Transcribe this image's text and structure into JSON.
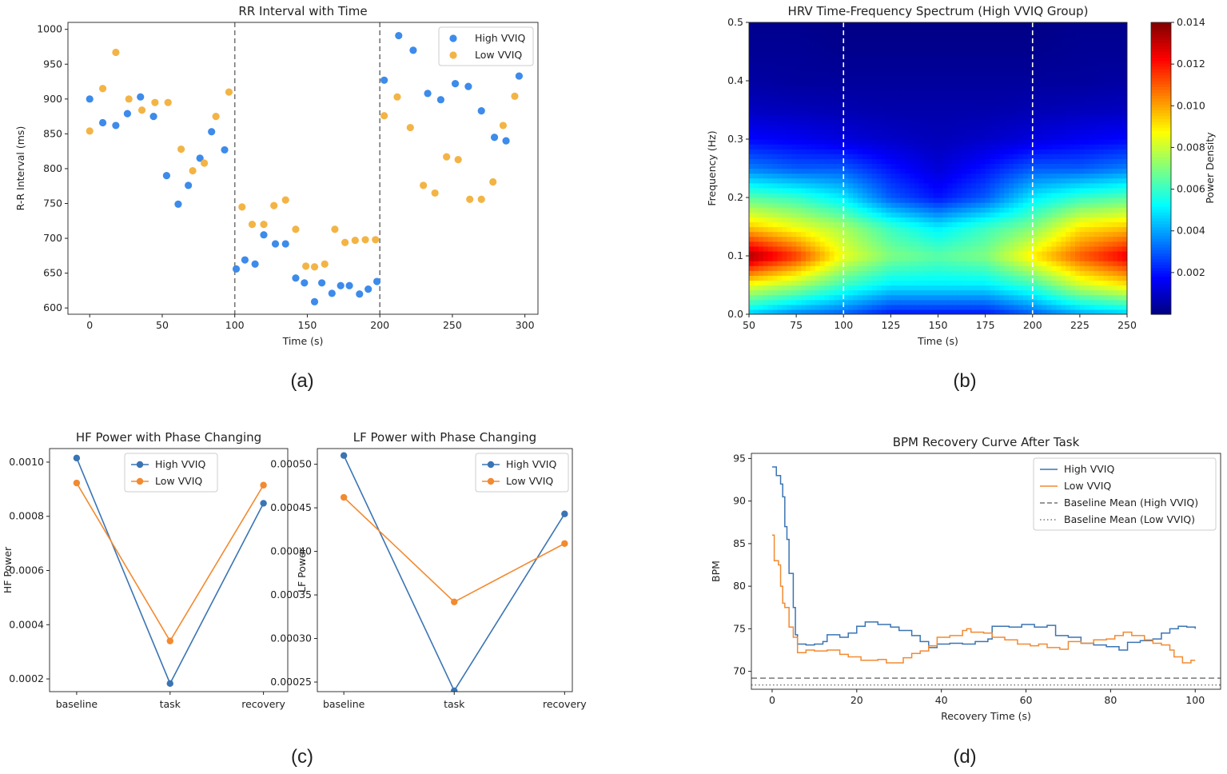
{
  "chart_data": [
    {
      "type": "scatter",
      "panel_label": "(a)",
      "title": "RR Interval with Time",
      "xlabel": "Time (s)",
      "ylabel": "R-R Interval (ms)",
      "xlim": [
        -15,
        309
      ],
      "ylim": [
        591,
        1010
      ],
      "xticks": [
        "0",
        "50",
        "100",
        "150",
        "200",
        "250",
        "300"
      ],
      "yticks": [
        "600",
        "650",
        "700",
        "750",
        "800",
        "850",
        "900",
        "950",
        "1000"
      ],
      "vlines": [
        100,
        200
      ],
      "legend": "top-right",
      "series": [
        {
          "name": "High VVIQ",
          "color": "#3d8bea",
          "points": [
            [
              0,
              900
            ],
            [
              9,
              866
            ],
            [
              18,
              862
            ],
            [
              26,
              879
            ],
            [
              35,
              903
            ],
            [
              44,
              875
            ],
            [
              53,
              790
            ],
            [
              61,
              749
            ],
            [
              68,
              776
            ],
            [
              76,
              815
            ],
            [
              84,
              853
            ],
            [
              93,
              827
            ],
            [
              101,
              656
            ],
            [
              107,
              669
            ],
            [
              114,
              663
            ],
            [
              120,
              705
            ],
            [
              128,
              692
            ],
            [
              135,
              692
            ],
            [
              142,
              643
            ],
            [
              148,
              636
            ],
            [
              155,
              609
            ],
            [
              160,
              636
            ],
            [
              167,
              621
            ],
            [
              173,
              632
            ],
            [
              179,
              632
            ],
            [
              186,
              620
            ],
            [
              192,
              627
            ],
            [
              198,
              638
            ],
            [
              203,
              927
            ],
            [
              213,
              991
            ],
            [
              223,
              970
            ],
            [
              233,
              908
            ],
            [
              242,
              899
            ],
            [
              252,
              922
            ],
            [
              261,
              918
            ],
            [
              270,
              883
            ],
            [
              279,
              845
            ],
            [
              287,
              840
            ],
            [
              296,
              933
            ]
          ]
        },
        {
          "name": "Low  VVIQ",
          "color": "#f3b446",
          "points": [
            [
              0,
              854
            ],
            [
              9,
              915
            ],
            [
              18,
              967
            ],
            [
              27,
              900
            ],
            [
              36,
              884
            ],
            [
              45,
              895
            ],
            [
              54,
              895
            ],
            [
              63,
              828
            ],
            [
              71,
              797
            ],
            [
              79,
              808
            ],
            [
              87,
              875
            ],
            [
              96,
              910
            ],
            [
              105,
              745
            ],
            [
              112,
              720
            ],
            [
              120,
              720
            ],
            [
              127,
              747
            ],
            [
              135,
              755
            ],
            [
              142,
              713
            ],
            [
              149,
              660
            ],
            [
              155,
              659
            ],
            [
              162,
              663
            ],
            [
              169,
              713
            ],
            [
              176,
              694
            ],
            [
              183,
              697
            ],
            [
              190,
              698
            ],
            [
              197,
              698
            ],
            [
              203,
              876
            ],
            [
              212,
              903
            ],
            [
              221,
              859
            ],
            [
              230,
              776
            ],
            [
              238,
              765
            ],
            [
              246,
              817
            ],
            [
              254,
              813
            ],
            [
              262,
              756
            ],
            [
              270,
              756
            ],
            [
              278,
              781
            ],
            [
              285,
              862
            ],
            [
              293,
              904
            ]
          ]
        }
      ]
    },
    {
      "type": "heatmap",
      "panel_label": "(b)",
      "title": "HRV Time-Frequency Spectrum (High VVIQ Group)",
      "xlabel": "Time (s)",
      "ylabel": "Frequency (Hz)",
      "xlim": [
        50,
        250
      ],
      "ylim": [
        0,
        0.5
      ],
      "xticks": [
        "50",
        "75",
        "100",
        "125",
        "150",
        "175",
        "200",
        "225",
        "250"
      ],
      "yticks": [
        "0.0",
        "0.1",
        "0.2",
        "0.3",
        "0.4",
        "0.5"
      ],
      "vlines": [
        100,
        200
      ],
      "colorbar": {
        "label": "Power Density",
        "range": [
          0,
          0.014
        ],
        "ticks": [
          "0.002",
          "0.004",
          "0.006",
          "0.008",
          "0.010",
          "0.012",
          "0.014"
        ],
        "colormap": "jet"
      },
      "x": [
        50,
        75,
        100,
        125,
        150,
        175,
        200,
        225,
        250
      ],
      "y": [
        0,
        0.05,
        0.1,
        0.15,
        0.2,
        0.25,
        0.3,
        0.35,
        0.4,
        0.45,
        0.5
      ],
      "z": [
        [
          0.0045,
          0.0035,
          0.003,
          0.002,
          0.002,
          0.002,
          0.003,
          0.004,
          0.0045
        ],
        [
          0.0085,
          0.0075,
          0.006,
          0.005,
          0.005,
          0.005,
          0.006,
          0.008,
          0.009
        ],
        [
          0.0135,
          0.0115,
          0.0085,
          0.007,
          0.0065,
          0.007,
          0.009,
          0.011,
          0.0125
        ],
        [
          0.0095,
          0.0085,
          0.0075,
          0.006,
          0.005,
          0.006,
          0.007,
          0.009,
          0.0095
        ],
        [
          0.0065,
          0.006,
          0.005,
          0.003,
          0.002,
          0.003,
          0.005,
          0.006,
          0.0065
        ],
        [
          0.0035,
          0.003,
          0.003,
          0.002,
          0.0012,
          0.002,
          0.003,
          0.003,
          0.0035
        ],
        [
          0.0018,
          0.0016,
          0.0013,
          0.001,
          0.0008,
          0.001,
          0.0013,
          0.0016,
          0.0018
        ],
        [
          0.0009,
          0.0008,
          0.0007,
          0.0006,
          0.0006,
          0.0006,
          0.0007,
          0.0008,
          0.0009
        ],
        [
          0.0005,
          0.0004,
          0.0004,
          0.0004,
          0.0004,
          0.0004,
          0.0004,
          0.0004,
          0.0005
        ],
        [
          0.0003,
          0.0003,
          0.0002,
          0.0002,
          0.0002,
          0.0002,
          0.0002,
          0.0003,
          0.0003
        ],
        [
          0.0002,
          0.0002,
          0.0001,
          0.0001,
          0.0001,
          0.0001,
          0.0001,
          0.0002,
          0.0002
        ]
      ]
    },
    {
      "type": "line",
      "panel_label": "(c)",
      "title": "HF Power with Phase Changing",
      "xlabel": "",
      "ylabel": "HF Power",
      "categories": [
        "baseline",
        "task",
        "recovery"
      ],
      "xlim": [
        -0.29,
        2.26
      ],
      "ylim": [
        0.000153,
        0.00105
      ],
      "yticks": [
        "0.0002",
        "0.0004",
        "0.0006",
        "0.0008",
        "0.0010"
      ],
      "legend": "upper-center",
      "series": [
        {
          "name": "High VVIQ",
          "color": "#3a74b3",
          "values": [
            0.001015,
            0.000183,
            0.000848
          ]
        },
        {
          "name": "Low VVIQ",
          "color": "#f28a30",
          "values": [
            0.000923,
            0.00034,
            0.000915
          ]
        }
      ]
    },
    {
      "type": "line",
      "panel_label": "",
      "title": "LF Power with Phase Changing",
      "xlabel": "",
      "ylabel": "LF Power",
      "categories": [
        "baseline",
        "task",
        "recovery"
      ],
      "xlim": [
        -0.24,
        2.07
      ],
      "ylim": [
        0.000239,
        0.000518
      ],
      "yticks": [
        "0.00025",
        "0.00030",
        "0.00035",
        "0.00040",
        "0.00045",
        "0.00050"
      ],
      "legend": "upper-right",
      "series": [
        {
          "name": "High VVIQ",
          "color": "#3a74b3",
          "values": [
            0.00051,
            0.00024,
            0.000443
          ]
        },
        {
          "name": "Low VVIQ",
          "color": "#f28a30",
          "values": [
            0.000462,
            0.000342,
            0.000409
          ]
        }
      ]
    },
    {
      "type": "line",
      "panel_label": "(d)",
      "title": "BPM Recovery Curve After Task",
      "xlabel": "Recovery Time (s)",
      "ylabel": "BPM",
      "xlim": [
        -4.9,
        106
      ],
      "ylim": [
        67.9,
        95.6
      ],
      "xticks": [
        "0",
        "20",
        "40",
        "60",
        "80",
        "100"
      ],
      "yticks": [
        "70",
        "75",
        "80",
        "85",
        "90",
        "95"
      ],
      "legend": "top-right",
      "series": [
        {
          "name": "High VVIQ",
          "color": "#3a74b3",
          "style": "step",
          "points": [
            [
              0,
              94
            ],
            [
              1,
              93
            ],
            [
              2,
              92
            ],
            [
              2.5,
              90.5
            ],
            [
              3,
              87
            ],
            [
              3.5,
              85.5
            ],
            [
              4,
              81.5
            ],
            [
              5,
              77.5
            ],
            [
              5.5,
              74.3
            ],
            [
              6,
              73.2
            ],
            [
              8,
              73.1
            ],
            [
              10,
              73.2
            ],
            [
              12,
              73.5
            ],
            [
              13,
              74.3
            ],
            [
              16,
              74.0
            ],
            [
              18,
              74.5
            ],
            [
              20,
              75.3
            ],
            [
              22,
              75.8
            ],
            [
              25,
              75.5
            ],
            [
              28,
              75.2
            ],
            [
              30,
              74.8
            ],
            [
              33,
              74.2
            ],
            [
              35,
              73.5
            ],
            [
              37,
              72.8
            ],
            [
              39,
              73.2
            ],
            [
              42,
              73.3
            ],
            [
              45,
              73.2
            ],
            [
              48,
              73.5
            ],
            [
              51,
              73.8
            ],
            [
              52,
              75.3
            ],
            [
              56,
              75.2
            ],
            [
              59,
              75.5
            ],
            [
              62,
              75.2
            ],
            [
              65,
              75.4
            ],
            [
              67,
              74.2
            ],
            [
              70,
              74.0
            ],
            [
              73,
              73.3
            ],
            [
              76,
              73.1
            ],
            [
              79,
              72.9
            ],
            [
              82,
              72.5
            ],
            [
              84,
              73.4
            ],
            [
              87,
              73.6
            ],
            [
              90,
              73.8
            ],
            [
              92,
              74.5
            ],
            [
              94,
              75.0
            ],
            [
              96,
              75.3
            ],
            [
              98,
              75.2
            ],
            [
              100,
              75.0
            ]
          ]
        },
        {
          "name": "Low VVIQ",
          "color": "#f28a30",
          "style": "step",
          "points": [
            [
              0,
              86
            ],
            [
              0.5,
              83
            ],
            [
              1.5,
              82.5
            ],
            [
              2,
              80
            ],
            [
              2.5,
              78
            ],
            [
              3,
              77.5
            ],
            [
              4,
              75.2
            ],
            [
              5,
              74.0
            ],
            [
              6,
              72.2
            ],
            [
              8,
              72.5
            ],
            [
              10,
              72.4
            ],
            [
              13,
              72.5
            ],
            [
              16,
              72.0
            ],
            [
              18,
              71.7
            ],
            [
              21,
              71.3
            ],
            [
              25,
              71.4
            ],
            [
              27,
              71.0
            ],
            [
              29,
              71.0
            ],
            [
              31,
              71.6
            ],
            [
              33,
              72.1
            ],
            [
              35,
              72.4
            ],
            [
              37,
              73.0
            ],
            [
              39,
              74.0
            ],
            [
              42,
              74.2
            ],
            [
              45,
              74.8
            ],
            [
              46,
              75.0
            ],
            [
              47,
              74.6
            ],
            [
              50,
              74.5
            ],
            [
              52,
              74.0
            ],
            [
              55,
              73.7
            ],
            [
              58,
              73.2
            ],
            [
              61,
              73.0
            ],
            [
              63,
              73.2
            ],
            [
              65,
              72.8
            ],
            [
              68,
              72.6
            ],
            [
              70,
              73.5
            ],
            [
              73,
              73.3
            ],
            [
              76,
              73.7
            ],
            [
              79,
              73.8
            ],
            [
              81,
              74.2
            ],
            [
              83,
              74.6
            ],
            [
              85,
              74.2
            ],
            [
              88,
              73.7
            ],
            [
              90,
              73.3
            ],
            [
              92,
              73.1
            ],
            [
              94,
              72.5
            ],
            [
              95,
              71.7
            ],
            [
              97,
              71.0
            ],
            [
              99,
              71.3
            ],
            [
              100,
              71.3
            ]
          ]
        },
        {
          "name": "Baseline Mean (High VVIQ)",
          "color": "#777777",
          "style": "dashed",
          "hline": 69.2
        },
        {
          "name": "Baseline Mean (Low VVIQ)",
          "color": "#777777",
          "style": "dotted",
          "hline": 68.4
        }
      ]
    }
  ]
}
